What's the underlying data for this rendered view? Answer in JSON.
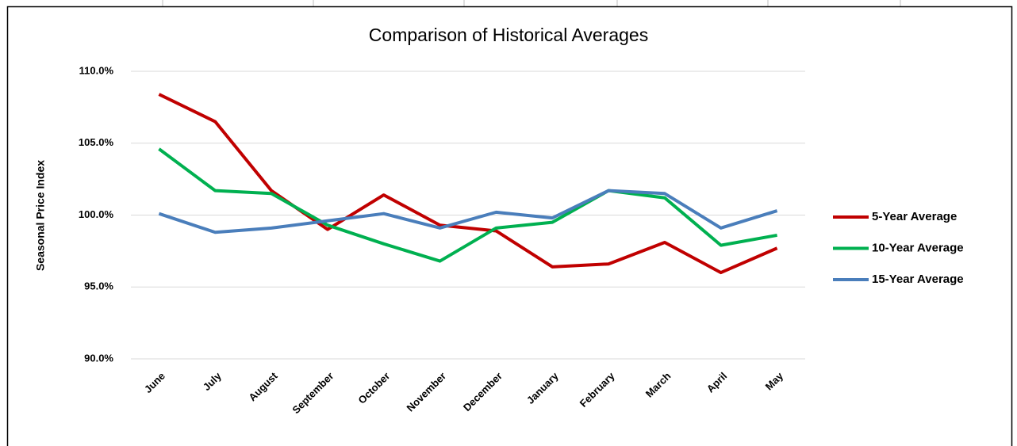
{
  "chart_data": {
    "type": "line",
    "title": "Comparison of Historical Averages",
    "y_label": "Seasonal Price Index",
    "categories": [
      "June",
      "July",
      "August",
      "September",
      "October",
      "November",
      "December",
      "January",
      "February",
      "March",
      "April",
      "May"
    ],
    "series": [
      {
        "name": "5-Year Average",
        "color": "#c00000",
        "values": [
          108.4,
          106.5,
          101.7,
          99.0,
          101.4,
          99.3,
          98.9,
          96.4,
          96.6,
          98.1,
          96.0,
          97.7
        ]
      },
      {
        "name": "10-Year Average",
        "color": "#00b050",
        "values": [
          104.6,
          101.7,
          101.5,
          99.3,
          98.0,
          96.8,
          99.1,
          99.5,
          101.7,
          101.2,
          97.9,
          98.6
        ]
      },
      {
        "name": "15-Year Average",
        "color": "#4a7ebb",
        "values": [
          100.1,
          98.8,
          99.1,
          99.6,
          100.1,
          99.1,
          100.2,
          99.8,
          101.7,
          101.5,
          99.1,
          100.3
        ]
      }
    ],
    "ylim": [
      90,
      110
    ],
    "yticks": [
      {
        "value": 90,
        "label": "90.0%"
      },
      {
        "value": 95,
        "label": "95.0%"
      },
      {
        "value": 100,
        "label": "100.0%"
      },
      {
        "value": 105,
        "label": "105.0%"
      },
      {
        "value": 110,
        "label": "110.0%"
      }
    ],
    "grid": true,
    "legend": "right"
  }
}
